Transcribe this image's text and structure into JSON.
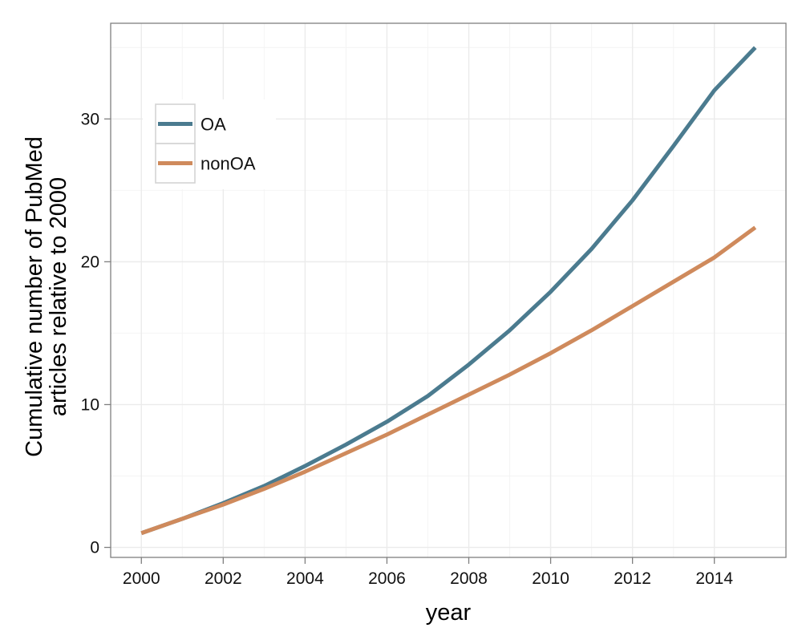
{
  "chart_data": {
    "type": "line",
    "title": "",
    "xlabel": "year",
    "ylabel_lines": [
      "Cumulative number of PubMed",
      "articles relative to 2000"
    ],
    "xlim": [
      1999.25,
      2015.75
    ],
    "ylim": [
      -0.7,
      36.7
    ],
    "x_ticks": [
      2000,
      2002,
      2004,
      2006,
      2008,
      2010,
      2012,
      2014
    ],
    "x_tick_labels": [
      "2000",
      "2002",
      "2004",
      "2006",
      "2008",
      "2010",
      "2012",
      "2014"
    ],
    "y_ticks": [
      0,
      10,
      20,
      30
    ],
    "y_tick_labels": [
      "0",
      "10",
      "20",
      "30"
    ],
    "grid": true,
    "legend_position": "top-left",
    "x": [
      2000,
      2001,
      2002,
      2003,
      2004,
      2005,
      2006,
      2007,
      2008,
      2009,
      2010,
      2011,
      2012,
      2013,
      2014,
      2015
    ],
    "series": [
      {
        "name": "OA",
        "color": "#4b7b8f",
        "values": [
          1.0,
          2.0,
          3.1,
          4.3,
          5.7,
          7.2,
          8.8,
          10.6,
          12.8,
          15.2,
          17.9,
          20.9,
          24.3,
          28.1,
          32.0,
          35.0
        ]
      },
      {
        "name": "nonOA",
        "color": "#cf8a5c",
        "values": [
          1.0,
          2.0,
          3.0,
          4.1,
          5.3,
          6.6,
          7.9,
          9.3,
          10.7,
          12.1,
          13.6,
          15.2,
          16.9,
          18.6,
          20.3,
          22.4
        ]
      }
    ]
  }
}
